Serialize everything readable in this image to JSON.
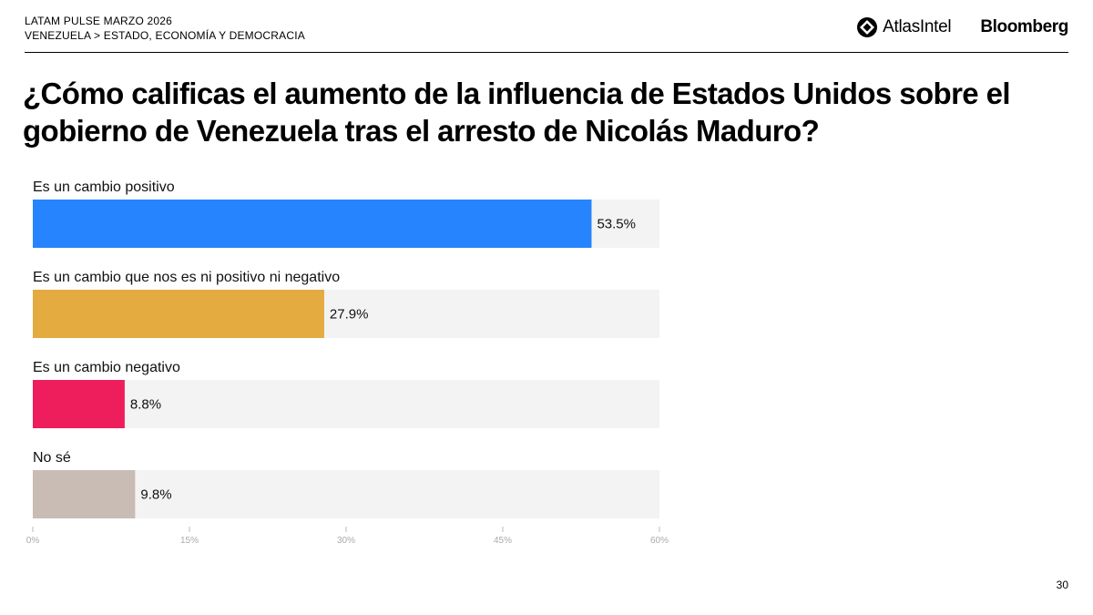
{
  "header": {
    "line1": "LATAM PULSE MARZO 2026",
    "line2": "VENEZUELA > ESTADO, ECONOMÍA Y DEMOCRACIA"
  },
  "logos": {
    "atlas": "AtlasIntel",
    "bloomberg": "Bloomberg"
  },
  "page_number": "30",
  "chart_data": {
    "type": "bar",
    "orientation": "horizontal",
    "title": "¿Cómo calificas el aumento de la influencia de Estados Unidos sobre el gobierno de Venezuela tras el arresto de Nicolás Maduro?",
    "categories": [
      "Es un cambio positivo",
      "Es un cambio que nos es ni positivo ni negativo",
      "Es un cambio negativo",
      "No sé"
    ],
    "values": [
      53.5,
      27.9,
      8.8,
      9.8
    ],
    "value_labels": [
      "53.5%",
      "27.9%",
      "8.8%",
      "9.8%"
    ],
    "colors": [
      "#2684fe",
      "#e4ab40",
      "#ee1d5b",
      "#c9bcb4"
    ],
    "track_color": "#f3f3f3",
    "xlim": [
      0,
      60
    ],
    "xticks": [
      0,
      15,
      30,
      45,
      60
    ],
    "xtick_labels": [
      "0%",
      "15%",
      "30%",
      "45%",
      "60%"
    ],
    "xlabel": "",
    "ylabel": ""
  }
}
